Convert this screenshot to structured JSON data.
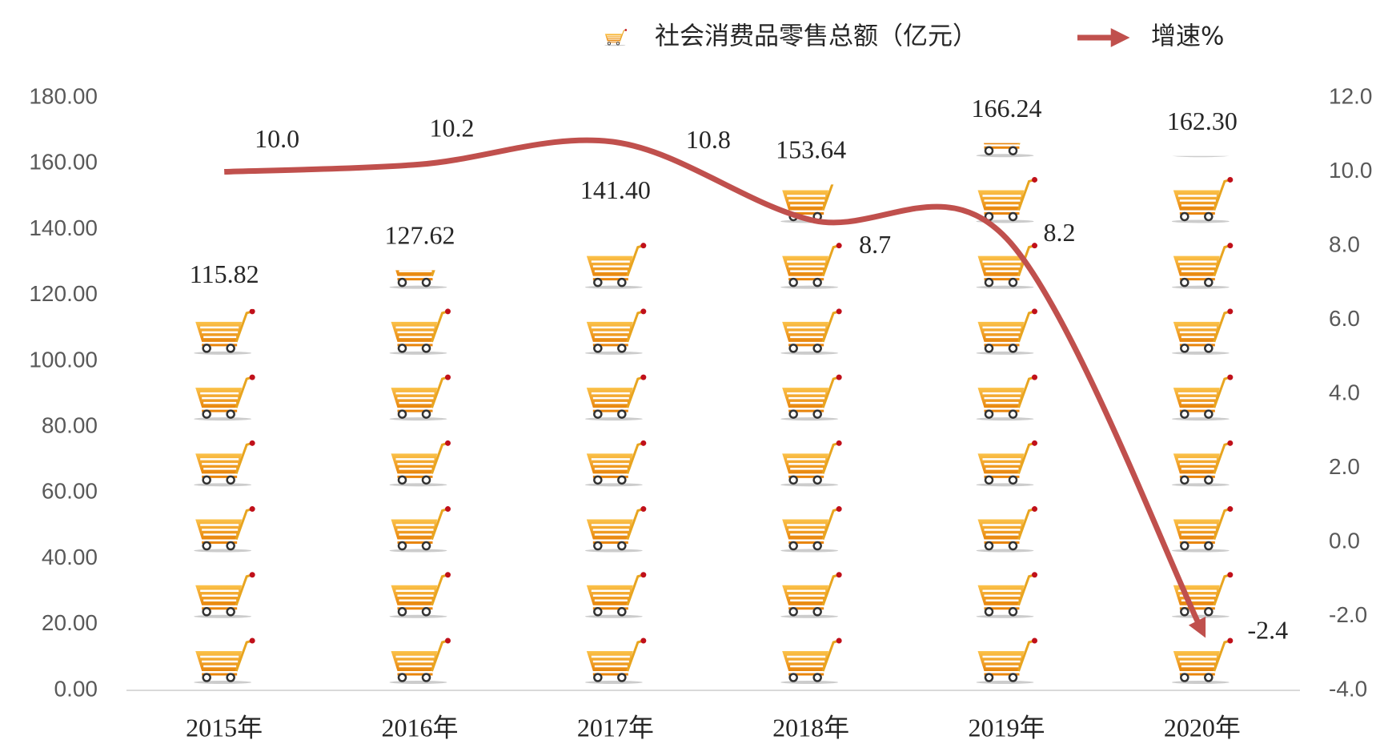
{
  "chart_data": {
    "type": "bar",
    "categories": [
      "2015年",
      "2016年",
      "2017年",
      "2018年",
      "2019年",
      "2020年"
    ],
    "series": [
      {
        "name": "社会消费品零售总额（亿元）",
        "type": "bar",
        "color": "#f39c12",
        "values": [
          115.82,
          127.62,
          141.4,
          153.64,
          166.24,
          162.3
        ],
        "value_labels": [
          "115.82",
          "127.62",
          "141.40",
          "153.64",
          "166.24",
          "162.30"
        ]
      },
      {
        "name": "增速%",
        "type": "line",
        "axis": "y2",
        "color": "#c0504d",
        "values": [
          10.0,
          10.2,
          10.8,
          8.7,
          8.2,
          -2.4
        ],
        "value_labels": [
          "10.0",
          "10.2",
          "10.8",
          "8.7",
          "8.2",
          "-2.4"
        ]
      }
    ],
    "ylim": [
      0,
      180
    ],
    "yticks": [
      {
        "value": 0,
        "label": "0.00"
      },
      {
        "value": 20,
        "label": "20.00"
      },
      {
        "value": 40,
        "label": "40.00"
      },
      {
        "value": 60,
        "label": "60.00"
      },
      {
        "value": 80,
        "label": "80.00"
      },
      {
        "value": 100,
        "label": "100.00"
      },
      {
        "value": 120,
        "label": "120.00"
      },
      {
        "value": 140,
        "label": "140.00"
      },
      {
        "value": 160,
        "label": "160.00"
      },
      {
        "value": 180,
        "label": "180.00"
      }
    ],
    "y2lim": [
      -4,
      12
    ],
    "y2ticks": [
      {
        "value": -4,
        "label": "-4.0"
      },
      {
        "value": -2,
        "label": "-2.0"
      },
      {
        "value": 0,
        "label": "0.0"
      },
      {
        "value": 2,
        "label": "2.0"
      },
      {
        "value": 4,
        "label": "4.0"
      },
      {
        "value": 6,
        "label": "6.0"
      },
      {
        "value": 8,
        "label": "8.0"
      },
      {
        "value": 10,
        "label": "10.0"
      },
      {
        "value": 12,
        "label": "12.0"
      }
    ],
    "legend": "top"
  }
}
